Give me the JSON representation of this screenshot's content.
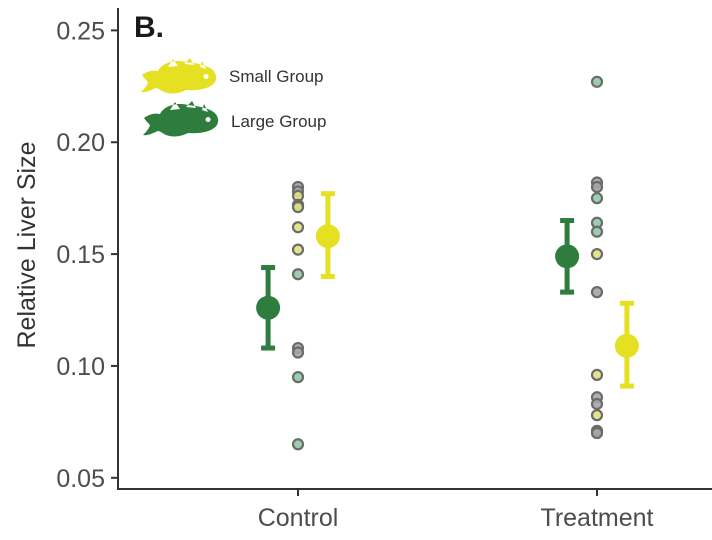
{
  "panel_label": "B.",
  "colors": {
    "small": "#e5e022",
    "large": "#2e7d3e",
    "point_fill_gray": "#a6a6a6",
    "point_fill_green": "#8fc9a8",
    "point_fill_yellow": "#e2e07a"
  },
  "chart_data": {
    "type": "scatter",
    "title": "",
    "xlabel": "",
    "ylabel": "Relative Liver Size",
    "categories": [
      "Control",
      "Treatment"
    ],
    "ylim": [
      0.045,
      0.26
    ],
    "yticks": [
      0.05,
      0.1,
      0.15,
      0.2,
      0.25
    ],
    "ytick_labels": [
      "0.05",
      "0.10",
      "0.15",
      "0.20",
      "0.25"
    ],
    "legend": {
      "position": "top-left",
      "entries": [
        {
          "label": "Small Group",
          "color": "#e5e022",
          "icon": "fish-icon"
        },
        {
          "label": "Large Group",
          "color": "#2e7d3e",
          "icon": "fish-icon"
        }
      ]
    },
    "series": [
      {
        "name": "Large Group",
        "color": "#2e7d3e",
        "offset": -0.1,
        "means": [
          0.126,
          0.149
        ],
        "lower": [
          0.108,
          0.133
        ],
        "upper": [
          0.144,
          0.165
        ]
      },
      {
        "name": "Small Group",
        "color": "#e5e022",
        "offset": 0.1,
        "means": [
          0.158,
          0.109
        ],
        "lower": [
          0.14,
          0.091
        ],
        "upper": [
          0.177,
          0.128
        ]
      }
    ],
    "points": [
      {
        "cat": 0,
        "y": 0.18,
        "fill": "gray"
      },
      {
        "cat": 0,
        "y": 0.178,
        "fill": "gray"
      },
      {
        "cat": 0,
        "y": 0.176,
        "fill": "yellow"
      },
      {
        "cat": 0,
        "y": 0.172,
        "fill": "gray"
      },
      {
        "cat": 0,
        "y": 0.171,
        "fill": "yellow"
      },
      {
        "cat": 0,
        "y": 0.162,
        "fill": "yellow"
      },
      {
        "cat": 0,
        "y": 0.152,
        "fill": "yellow"
      },
      {
        "cat": 0,
        "y": 0.141,
        "fill": "green"
      },
      {
        "cat": 0,
        "y": 0.108,
        "fill": "gray"
      },
      {
        "cat": 0,
        "y": 0.106,
        "fill": "gray"
      },
      {
        "cat": 0,
        "y": 0.095,
        "fill": "green"
      },
      {
        "cat": 0,
        "y": 0.065,
        "fill": "green"
      },
      {
        "cat": 1,
        "y": 0.227,
        "fill": "green"
      },
      {
        "cat": 1,
        "y": 0.182,
        "fill": "gray"
      },
      {
        "cat": 1,
        "y": 0.18,
        "fill": "gray"
      },
      {
        "cat": 1,
        "y": 0.175,
        "fill": "green"
      },
      {
        "cat": 1,
        "y": 0.164,
        "fill": "green"
      },
      {
        "cat": 1,
        "y": 0.16,
        "fill": "green"
      },
      {
        "cat": 1,
        "y": 0.15,
        "fill": "yellow"
      },
      {
        "cat": 1,
        "y": 0.133,
        "fill": "gray"
      },
      {
        "cat": 1,
        "y": 0.096,
        "fill": "yellow"
      },
      {
        "cat": 1,
        "y": 0.086,
        "fill": "gray"
      },
      {
        "cat": 1,
        "y": 0.083,
        "fill": "gray"
      },
      {
        "cat": 1,
        "y": 0.078,
        "fill": "yellow"
      },
      {
        "cat": 1,
        "y": 0.071,
        "fill": "gray"
      },
      {
        "cat": 1,
        "y": 0.07,
        "fill": "gray"
      }
    ]
  }
}
